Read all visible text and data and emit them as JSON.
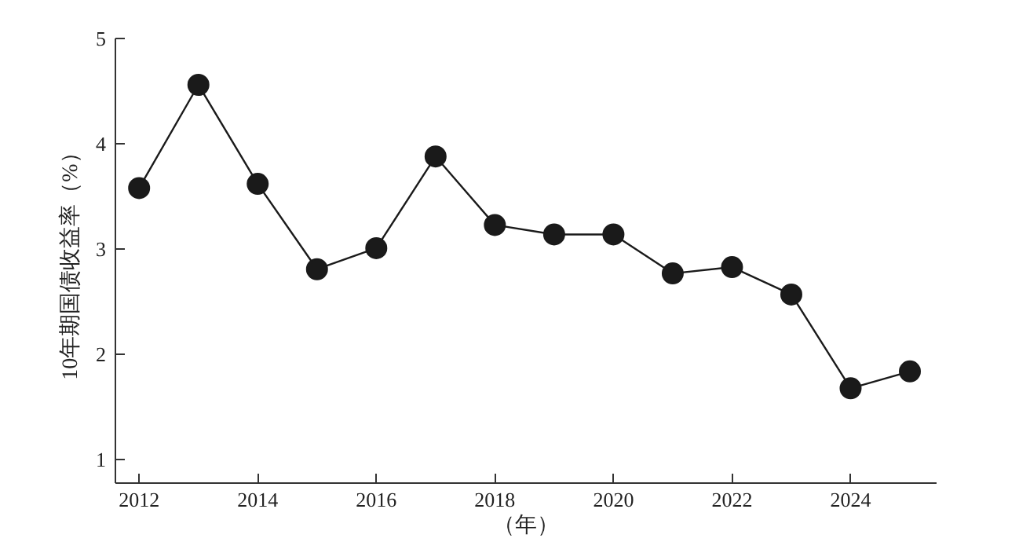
{
  "chart_data": {
    "type": "line",
    "xlabel": "（年）",
    "ylabel": "10年期国债收益率（%）",
    "x": [
      2012,
      2013,
      2014,
      2015,
      2016,
      2017,
      2018,
      2019,
      2020,
      2021,
      2022,
      2023,
      2024,
      2025
    ],
    "series": [
      {
        "color": "#1a1a1a",
        "values": [
          3.58,
          4.56,
          3.62,
          2.81,
          3.01,
          3.88,
          3.23,
          3.14,
          3.14,
          2.77,
          2.83,
          2.57,
          1.68,
          1.84
        ]
      }
    ],
    "xlim": [
      2011.6,
      2025.45
    ],
    "xticks": [
      2012,
      2014,
      2016,
      2018,
      2020,
      2022,
      2024
    ],
    "ylim": [
      0.78,
      5
    ],
    "yticks": [
      1,
      2,
      3,
      4,
      5
    ],
    "grid": false,
    "marker": "circle",
    "line_style": "solid"
  }
}
